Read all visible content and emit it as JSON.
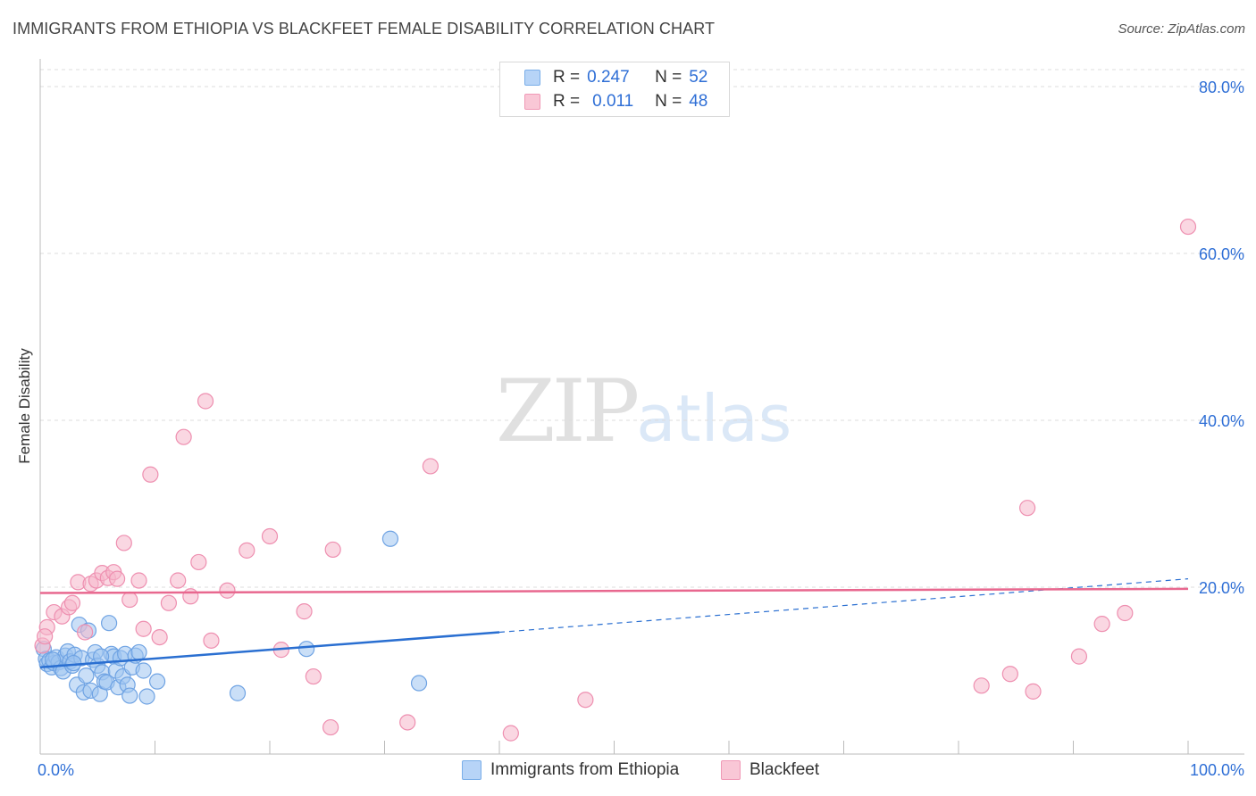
{
  "header": {
    "title": "IMMIGRANTS FROM ETHIOPIA VS BLACKFEET FEMALE DISABILITY CORRELATION CHART",
    "source": "Source: ZipAtlas.com"
  },
  "watermark": {
    "zip": "ZIP",
    "atlas": "atlas"
  },
  "stats": {
    "rows": [
      {
        "r_label": "R =",
        "r_value": "0.247",
        "n_label": "N =",
        "n_value": "52"
      },
      {
        "r_label": "R =",
        "r_value": "0.011",
        "n_label": "N =",
        "n_value": "48"
      }
    ]
  },
  "legend": {
    "series_a": "Immigrants from Ethiopia",
    "series_b": "Blackfeet"
  },
  "colors": {
    "blue_fill": "#9fc4f0",
    "blue_stroke": "#6fa3e3",
    "blue_line": "#2a6fd1",
    "pink_fill": "#f6b6cb",
    "pink_stroke": "#ee8fb0",
    "pink_line": "#e8688f",
    "axis_label": "#2f6fd6",
    "grid": "#dddddd"
  },
  "chart_data": {
    "type": "scatter",
    "title": "IMMIGRANTS FROM ETHIOPIA VS BLACKFEET FEMALE DISABILITY CORRELATION CHART",
    "xlabel": "",
    "ylabel": "Female Disability",
    "xlim": [
      0,
      100
    ],
    "ylim": [
      0,
      80
    ],
    "x_tick_labels": [
      {
        "x": 0,
        "label": "0.0%"
      },
      {
        "x": 100,
        "label": "100.0%"
      }
    ],
    "y_tick_labels": [
      {
        "y": 20,
        "label": "20.0%"
      },
      {
        "y": 40,
        "label": "40.0%"
      },
      {
        "y": 60,
        "label": "60.0%"
      },
      {
        "y": 80,
        "label": "80.0%"
      }
    ],
    "grid": true,
    "legend_position": "bottom",
    "series": [
      {
        "name": "Immigrants from Ethiopia",
        "color": "#9fc4f0",
        "points": [
          [
            0.3,
            12.6
          ],
          [
            0.5,
            11.4
          ],
          [
            0.6,
            10.8
          ],
          [
            0.8,
            11.2
          ],
          [
            1.0,
            10.4
          ],
          [
            1.2,
            10.9
          ],
          [
            1.4,
            11.6
          ],
          [
            1.6,
            11.0
          ],
          [
            1.8,
            10.3
          ],
          [
            2.0,
            9.9
          ],
          [
            2.2,
            11.8
          ],
          [
            2.4,
            12.3
          ],
          [
            2.6,
            11.1
          ],
          [
            2.8,
            10.6
          ],
          [
            3.0,
            11.9
          ],
          [
            3.2,
            8.3
          ],
          [
            3.4,
            15.5
          ],
          [
            3.6,
            11.5
          ],
          [
            3.8,
            7.4
          ],
          [
            4.0,
            9.4
          ],
          [
            4.2,
            14.8
          ],
          [
            4.4,
            7.6
          ],
          [
            4.6,
            11.3
          ],
          [
            4.8,
            12.2
          ],
          [
            5.0,
            10.6
          ],
          [
            5.2,
            7.2
          ],
          [
            5.4,
            9.8
          ],
          [
            5.6,
            8.7
          ],
          [
            5.8,
            8.6
          ],
          [
            6.0,
            15.7
          ],
          [
            6.2,
            12.0
          ],
          [
            6.4,
            11.7
          ],
          [
            6.6,
            10.0
          ],
          [
            6.8,
            8.0
          ],
          [
            7.0,
            11.5
          ],
          [
            7.2,
            9.3
          ],
          [
            7.4,
            12.0
          ],
          [
            7.6,
            8.3
          ],
          [
            7.8,
            7.0
          ],
          [
            8.0,
            10.4
          ],
          [
            8.3,
            11.8
          ],
          [
            8.6,
            12.2
          ],
          [
            9.0,
            10.0
          ],
          [
            9.3,
            6.9
          ],
          [
            10.2,
            8.7
          ],
          [
            17.2,
            7.3
          ],
          [
            23.2,
            12.6
          ],
          [
            30.5,
            25.8
          ],
          [
            33.0,
            8.5
          ],
          [
            1.1,
            11.3
          ],
          [
            2.9,
            10.9
          ],
          [
            5.3,
            11.7
          ]
        ],
        "trend": {
          "x": [
            0,
            40,
            100
          ],
          "y": [
            10.4,
            14.6,
            21.0
          ],
          "solid_until_x": 40
        }
      },
      {
        "name": "Blackfeet",
        "color": "#f6b6cb",
        "points": [
          [
            0.2,
            13.0
          ],
          [
            0.6,
            15.2
          ],
          [
            1.2,
            17.0
          ],
          [
            1.9,
            16.5
          ],
          [
            2.5,
            17.6
          ],
          [
            2.8,
            18.1
          ],
          [
            3.3,
            20.6
          ],
          [
            3.9,
            14.6
          ],
          [
            4.4,
            20.4
          ],
          [
            4.9,
            20.8
          ],
          [
            5.4,
            21.7
          ],
          [
            5.9,
            21.1
          ],
          [
            6.4,
            21.8
          ],
          [
            6.7,
            21.0
          ],
          [
            7.3,
            25.3
          ],
          [
            7.8,
            18.5
          ],
          [
            8.6,
            20.8
          ],
          [
            9.0,
            15.0
          ],
          [
            9.6,
            33.5
          ],
          [
            10.4,
            14.0
          ],
          [
            11.2,
            18.1
          ],
          [
            12.0,
            20.8
          ],
          [
            12.5,
            38.0
          ],
          [
            13.1,
            18.9
          ],
          [
            13.8,
            23.0
          ],
          [
            14.4,
            42.3
          ],
          [
            14.9,
            13.6
          ],
          [
            16.3,
            19.6
          ],
          [
            18.0,
            24.4
          ],
          [
            20.0,
            26.1
          ],
          [
            21.0,
            12.5
          ],
          [
            23.0,
            17.1
          ],
          [
            23.8,
            9.3
          ],
          [
            25.3,
            3.2
          ],
          [
            25.5,
            24.5
          ],
          [
            32.0,
            3.8
          ],
          [
            34.0,
            34.5
          ],
          [
            41.0,
            2.5
          ],
          [
            47.5,
            6.5
          ],
          [
            86.0,
            29.5
          ],
          [
            82.0,
            8.2
          ],
          [
            84.5,
            9.6
          ],
          [
            86.5,
            7.5
          ],
          [
            90.5,
            11.7
          ],
          [
            92.5,
            15.6
          ],
          [
            94.5,
            16.9
          ],
          [
            100.0,
            63.2
          ],
          [
            0.4,
            14.1
          ]
        ],
        "trend": {
          "x": [
            0,
            100
          ],
          "y": [
            19.3,
            19.8
          ]
        }
      }
    ]
  }
}
